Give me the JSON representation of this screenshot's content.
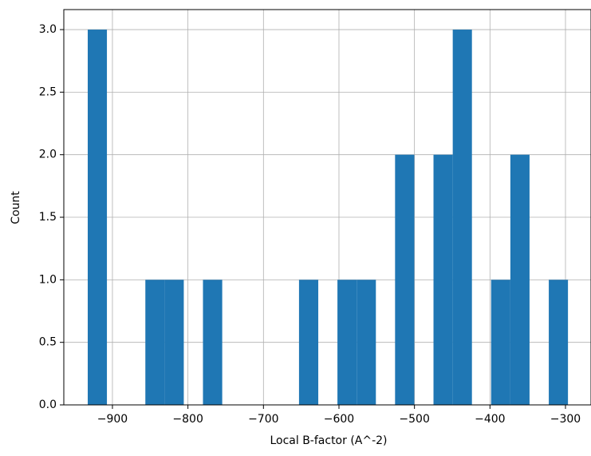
{
  "chart_data": {
    "type": "histogram",
    "xlabel": "Local B-factor (A^-2)",
    "ylabel": "Count",
    "bins": [
      -932.7,
      -907.3,
      -881.8,
      -856.4,
      -830.9,
      -805.5,
      -780.1,
      -754.6,
      -729.2,
      -703.7,
      -678.3,
      -652.9,
      -627.4,
      -602.0,
      -576.5,
      -551.1,
      -525.7,
      -500.2,
      -474.8,
      -449.3,
      -423.9,
      -398.5,
      -373.0,
      -347.6,
      -322.1,
      -296.7
    ],
    "values": [
      3,
      0,
      0,
      1,
      1,
      0,
      1,
      0,
      0,
      0,
      0,
      1,
      0,
      1,
      1,
      0,
      2,
      0,
      2,
      3,
      0,
      1,
      2,
      0,
      1
    ],
    "color": "#1f77b4",
    "xlim": [
      -964.4,
      -266.2
    ],
    "xticks": [
      {
        "value": -900,
        "label": "−900"
      },
      {
        "value": -800,
        "label": "−800"
      },
      {
        "value": -700,
        "label": "−700"
      },
      {
        "value": -600,
        "label": "−600"
      },
      {
        "value": -500,
        "label": "−500"
      },
      {
        "value": -400,
        "label": "−400"
      },
      {
        "value": -300,
        "label": "−300"
      }
    ],
    "ylim": [
      0,
      3.16
    ],
    "yticks": [
      {
        "value": 0,
        "label": "0.0"
      },
      0.5,
      {
        "value": 1,
        "label": "1.0"
      },
      1.5,
      {
        "value": 2,
        "label": "2.0"
      },
      2.5,
      {
        "value": 3,
        "label": "3.0"
      }
    ],
    "grid": true
  }
}
